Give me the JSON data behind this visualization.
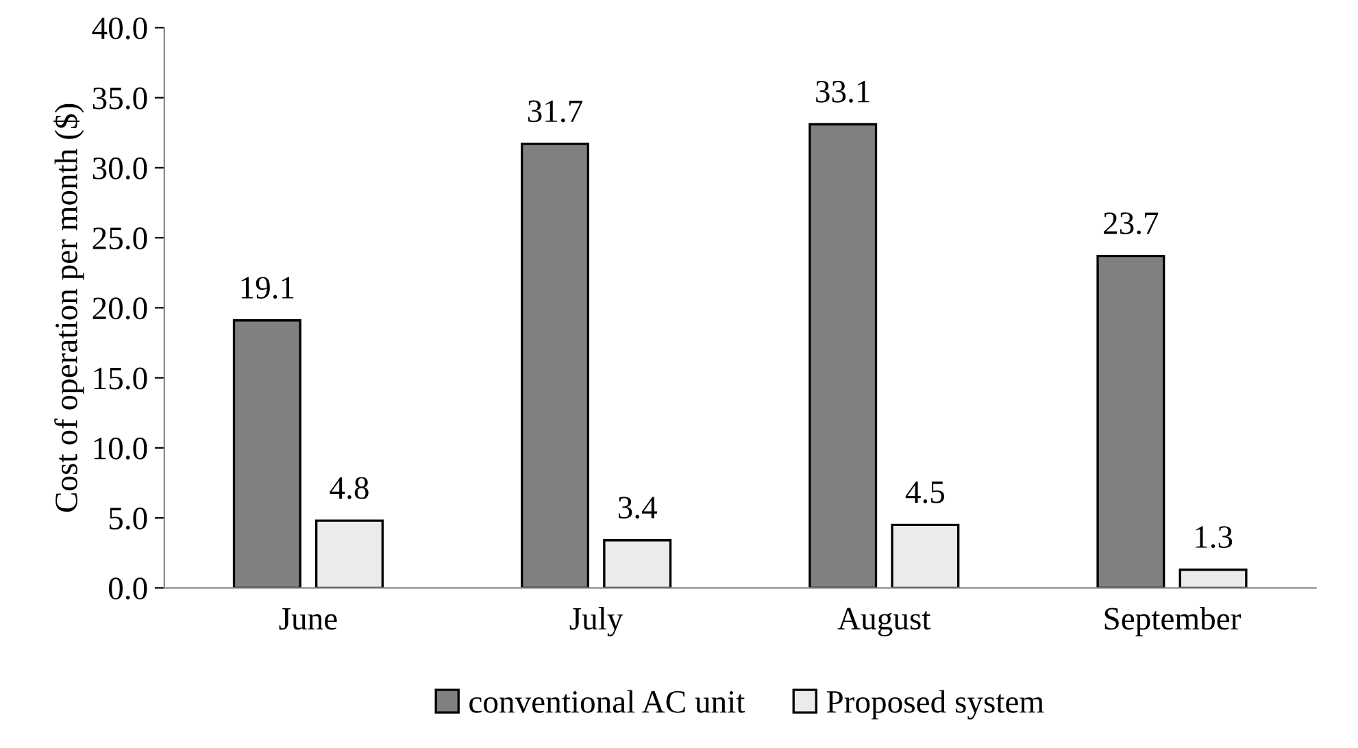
{
  "chart_data": {
    "type": "bar",
    "ylabel": "Cost of operation per month ($)",
    "categories": [
      "June",
      "July",
      "August",
      "September"
    ],
    "series": [
      {
        "name": "conventional AC unit",
        "color": "#808080",
        "values": [
          19.1,
          31.7,
          33.1,
          23.7
        ]
      },
      {
        "name": "Proposed system",
        "color": "#ebebeb",
        "values": [
          4.8,
          3.4,
          4.5,
          1.3
        ]
      }
    ],
    "ylim": [
      0,
      40
    ],
    "yticks": [
      {
        "value": 0,
        "label": "0.0"
      },
      {
        "value": 5,
        "label": "5.0"
      },
      {
        "value": 10,
        "label": "10.0"
      },
      {
        "value": 15,
        "label": "15.0"
      },
      {
        "value": 20,
        "label": "20.0"
      },
      {
        "value": 25,
        "label": "25.0"
      },
      {
        "value": 30,
        "label": "30.0"
      },
      {
        "value": 35,
        "label": "35.0"
      },
      {
        "value": 40,
        "label": "40.0"
      }
    ],
    "data_labels": true,
    "grid": false,
    "legend": "bottom"
  }
}
